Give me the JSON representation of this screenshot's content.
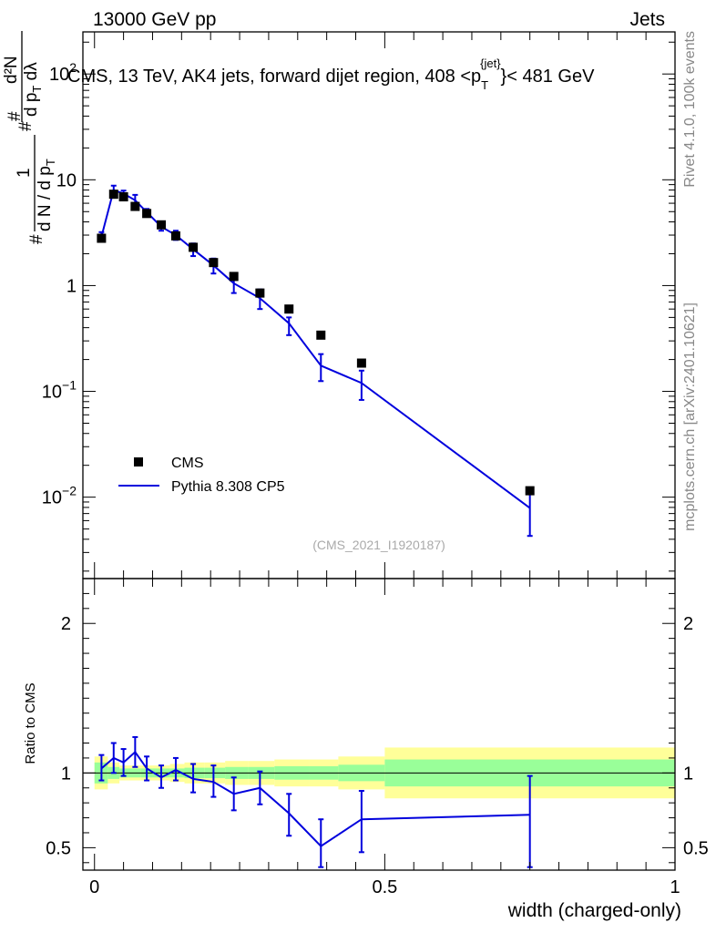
{
  "header": {
    "left": "13000 GeV pp",
    "right": "Jets",
    "side_top": "Rivet 4.1.0,  100k events",
    "side_bottom": "mcplots.cern.ch [arXiv:2401.10621]"
  },
  "colors": {
    "mc": "#0000dd",
    "data": "#000000",
    "band_inner": "#99ff99",
    "band_outer": "#ffff99",
    "watermark": "#aaaaaa"
  },
  "chart_data": [
    {
      "type": "scatter",
      "title": {
        "main": "CMS, 13 TeV, AK4 jets, forward dijet region, 408 <p",
        "sub": "T",
        "sup": "{jet}",
        "tail": "}< 481 GeV"
      },
      "ylabel": "1/(dN/dp_T) d^2N/(dp_T dλ)",
      "ylabel_parts": {
        "num": "1",
        "den": "d N / d p",
        "sub": "T",
        "rhs_top": "d²N",
        "rhs_bot": "d p",
        "rhs_bot_tail": " dλ",
        "prefix": "#"
      },
      "yscale": "log",
      "ylim": [
        0.0017,
        250
      ],
      "xlim": [
        -0.02,
        1.0
      ],
      "y_ticks": [
        {
          "value": 0.01,
          "base": "10",
          "exp": "−2"
        },
        {
          "value": 0.1,
          "base": "10",
          "exp": "−1"
        },
        {
          "value": 1,
          "base": "1",
          "exp": ""
        },
        {
          "value": 10,
          "base": "10",
          "exp": ""
        },
        {
          "value": 100,
          "base": "10",
          "exp": "2"
        }
      ],
      "watermark": "(CMS_2021_I1920187)",
      "legend": {
        "position": "lower-left",
        "entries": [
          "CMS",
          "Pythia 8.308 CP5"
        ]
      },
      "series": [
        {
          "name": "CMS",
          "kind": "markers",
          "x": [
            0.012,
            0.033,
            0.05,
            0.07,
            0.09,
            0.115,
            0.14,
            0.17,
            0.205,
            0.24,
            0.285,
            0.335,
            0.39,
            0.46,
            0.75
          ],
          "y": [
            2.8,
            7.3,
            6.9,
            5.6,
            4.8,
            3.75,
            2.95,
            2.3,
            1.65,
            1.22,
            0.85,
            0.6,
            0.34,
            0.185,
            0.0115
          ]
        },
        {
          "name": "Pythia 8.308 CP5",
          "kind": "line",
          "x": [
            0.012,
            0.033,
            0.05,
            0.07,
            0.09,
            0.115,
            0.14,
            0.17,
            0.205,
            0.24,
            0.285,
            0.335,
            0.39,
            0.46,
            0.75
          ],
          "y": [
            2.9,
            8.0,
            7.4,
            6.4,
            4.95,
            3.6,
            3.0,
            2.2,
            1.55,
            1.05,
            0.76,
            0.44,
            0.175,
            0.12,
            0.0079
          ],
          "err_low": [
            2.6,
            7.2,
            6.9,
            5.6,
            4.6,
            3.3,
            2.7,
            1.9,
            1.3,
            0.85,
            0.6,
            0.34,
            0.125,
            0.083,
            0.0043
          ],
          "err_high": [
            3.2,
            8.8,
            7.9,
            7.2,
            5.3,
            3.9,
            3.3,
            2.5,
            1.8,
            1.25,
            0.92,
            0.5,
            0.225,
            0.157,
            0.0115
          ]
        }
      ]
    },
    {
      "type": "line",
      "ylabel": "Ratio to CMS",
      "xlabel": "width (charged-only)",
      "ylim": [
        0.35,
        2.3
      ],
      "xlim": [
        -0.02,
        1.0
      ],
      "y_ticks": [
        0.5,
        1,
        2
      ],
      "y_tick_labels": [
        "0.5",
        "1",
        "2"
      ],
      "x_ticks": [
        0,
        0.5,
        1
      ],
      "x_tick_labels": [
        "0",
        "0.5",
        "1"
      ],
      "bands": {
        "edges": [
          0,
          0.023,
          0.043,
          0.06,
          0.08,
          0.1,
          0.13,
          0.155,
          0.19,
          0.225,
          0.265,
          0.31,
          0.37,
          0.42,
          0.5,
          1.0
        ],
        "inner": [
          0.07,
          0.04,
          0.03,
          0.03,
          0.03,
          0.03,
          0.03,
          0.035,
          0.035,
          0.04,
          0.04,
          0.045,
          0.045,
          0.055,
          0.09
        ],
        "outer": [
          0.11,
          0.07,
          0.05,
          0.05,
          0.05,
          0.05,
          0.06,
          0.07,
          0.07,
          0.08,
          0.08,
          0.09,
          0.09,
          0.11,
          0.17
        ]
      },
      "series": [
        {
          "name": "Pythia 8.308 CP5",
          "x": [
            0.012,
            0.033,
            0.05,
            0.07,
            0.09,
            0.115,
            0.14,
            0.17,
            0.205,
            0.24,
            0.285,
            0.335,
            0.39,
            0.46,
            0.75
          ],
          "y": [
            1.03,
            1.1,
            1.07,
            1.14,
            1.03,
            0.97,
            1.02,
            0.96,
            0.94,
            0.86,
            0.9,
            0.73,
            0.51,
            0.69,
            0.72
          ],
          "err_low": [
            0.95,
            1.0,
            0.98,
            1.04,
            0.95,
            0.9,
            0.95,
            0.87,
            0.84,
            0.75,
            0.79,
            0.58,
            0.37,
            0.47,
            0.37
          ],
          "err_high": [
            1.12,
            1.2,
            1.16,
            1.24,
            1.11,
            1.05,
            1.1,
            1.06,
            1.05,
            0.97,
            1.01,
            0.86,
            0.69,
            0.88,
            0.98
          ]
        }
      ]
    }
  ]
}
